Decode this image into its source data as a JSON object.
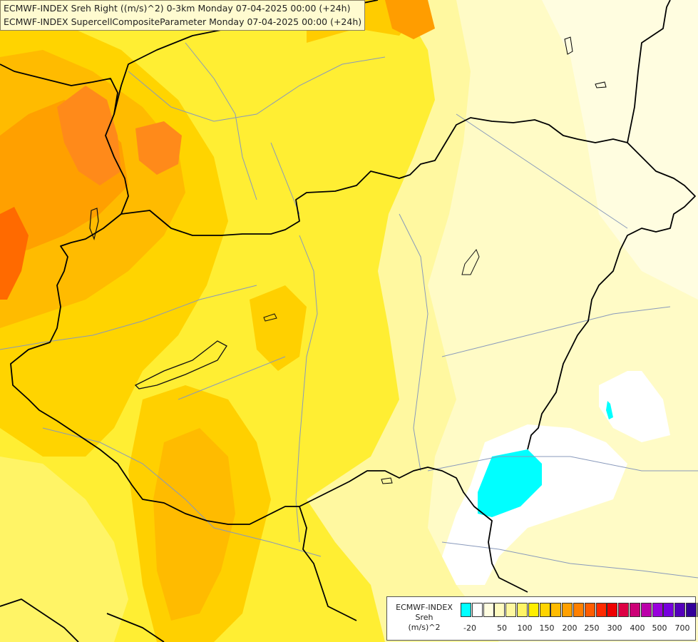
{
  "header": {
    "line1": "ECMWF-INDEX Sreh Right ((m/s)^2) 0-3km Monday 07-04-2025 00:00 (+24h)",
    "line2": "ECMWF-INDEX SupercellCompositeParameter Monday 07-04-2025 00:00 (+24h)"
  },
  "legend": {
    "title_line1": "ECMWF-INDEX",
    "title_line2": "Sreh",
    "unit": "(m/s)^2",
    "colors": [
      "#00ffff",
      "#ffffff",
      "#fffde0",
      "#fffbc0",
      "#fff8a0",
      "#fff466",
      "#ffee00",
      "#ffd400",
      "#ffbb00",
      "#ffa000",
      "#ff8000",
      "#ff5c00",
      "#ff2a00",
      "#ee0000",
      "#dd0044",
      "#cc0077",
      "#bb00aa",
      "#9900dd",
      "#7700dd",
      "#5500bb",
      "#330099",
      "#000080"
    ],
    "ticks": [
      "-20",
      "50",
      "100",
      "150",
      "200",
      "250",
      "300",
      "400",
      "500",
      "700"
    ]
  }
}
